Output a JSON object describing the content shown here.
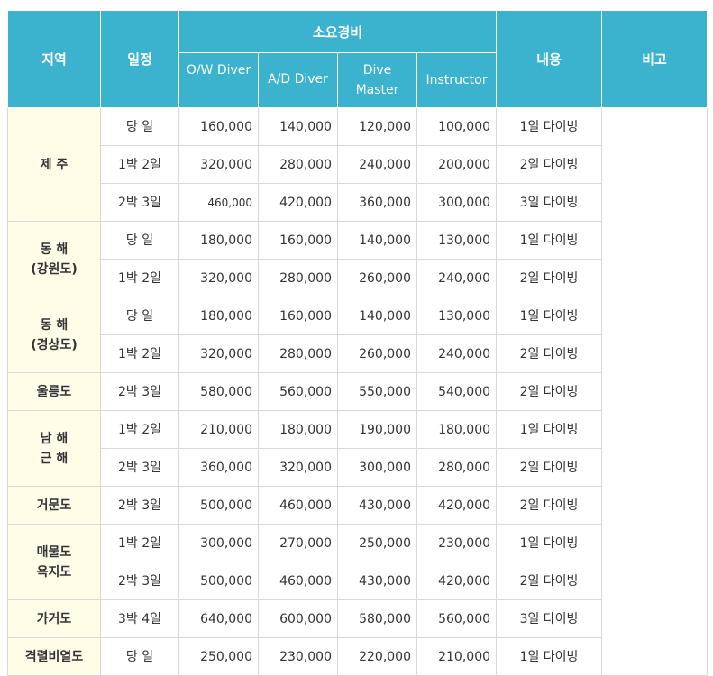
{
  "header": {
    "region": "지역",
    "schedule": "일정",
    "cost_group": "소요경비",
    "ow": "O/W Diver",
    "ad": "A/D Diver",
    "dive_master_1": "Dive",
    "dive_master_2": "Master",
    "instructor": "Instructor",
    "content": "내용",
    "note": "비고"
  },
  "groups": [
    {
      "region": [
        "제 주"
      ],
      "rows": [
        {
          "schedule": "당 일",
          "ow": "160,000",
          "ad": "140,000",
          "dm": "120,000",
          "ins": "100,000",
          "content": "1일 다이빙"
        },
        {
          "schedule": "1박 2일",
          "ow": "320,000",
          "ad": "280,000",
          "dm": "240,000",
          "ins": "200,000",
          "content": "2일 다이빙"
        },
        {
          "schedule": "2박 3일",
          "ow": "460,000",
          "ad": "420,000",
          "dm": "360,000",
          "ins": "300,000",
          "content": "3일 다이빙"
        }
      ]
    },
    {
      "region": [
        "동 해",
        "(강원도)"
      ],
      "rows": [
        {
          "schedule": "당 일",
          "ow": "180,000",
          "ad": "160,000",
          "dm": "140,000",
          "ins": "130,000",
          "content": "1일 다이빙"
        },
        {
          "schedule": "1박 2일",
          "ow": "320,000",
          "ad": "280,000",
          "dm": "260,000",
          "ins": "240,000",
          "content": "2일 다이빙"
        }
      ]
    },
    {
      "region": [
        "동 해",
        "(경상도)"
      ],
      "rows": [
        {
          "schedule": "당 일",
          "ow": "180,000",
          "ad": "160,000",
          "dm": "140,000",
          "ins": "130,000",
          "content": "1일 다이빙"
        },
        {
          "schedule": "1박 2일",
          "ow": "320,000",
          "ad": "280,000",
          "dm": "260,000",
          "ins": "240,000",
          "content": "2일 다이빙"
        }
      ]
    },
    {
      "region": [
        "울릉도"
      ],
      "rows": [
        {
          "schedule": "2박 3일",
          "ow": "580,000",
          "ad": "560,000",
          "dm": "550,000",
          "ins": "540,000",
          "content": "2일 다이빙"
        }
      ]
    },
    {
      "region": [
        "남 해",
        "근 해"
      ],
      "rows": [
        {
          "schedule": "1박 2일",
          "ow": "210,000",
          "ad": "180,000",
          "dm": "190,000",
          "ins": "180,000",
          "content": "1일 다이빙"
        },
        {
          "schedule": "2박 3일",
          "ow": "360,000",
          "ad": "320,000",
          "dm": "300,000",
          "ins": "280,000",
          "content": "2일 다이빙"
        }
      ]
    },
    {
      "region": [
        "거문도"
      ],
      "rows": [
        {
          "schedule": "2박 3일",
          "ow": "500,000",
          "ad": "460,000",
          "dm": "430,000",
          "ins": "420,000",
          "content": "2일 다이빙"
        }
      ]
    },
    {
      "region": [
        "매물도",
        "욕지도"
      ],
      "rows": [
        {
          "schedule": "1박 2일",
          "ow": "300,000",
          "ad": "270,000",
          "dm": "250,000",
          "ins": "230,000",
          "content": "1일 다이빙"
        },
        {
          "schedule": "2박 3일",
          "ow": "500,000",
          "ad": "460,000",
          "dm": "430,000",
          "ins": "420,000",
          "content": "2일 다이빙"
        }
      ]
    },
    {
      "region": [
        "가거도"
      ],
      "rows": [
        {
          "schedule": "3박 4일",
          "ow": "640,000",
          "ad": "600,000",
          "dm": "580,000",
          "ins": "560,000",
          "content": "3일 다이빙"
        }
      ]
    },
    {
      "region": [
        "격렬비열도"
      ],
      "rows": [
        {
          "schedule": "당 일",
          "ow": "250,000",
          "ad": "230,000",
          "dm": "220,000",
          "ins": "210,000",
          "content": "1일 다이빙"
        }
      ]
    }
  ],
  "colors": {
    "header_bg": "#3bb3cf",
    "region_bg": "#fffde8",
    "border": "#d9d9d9"
  }
}
